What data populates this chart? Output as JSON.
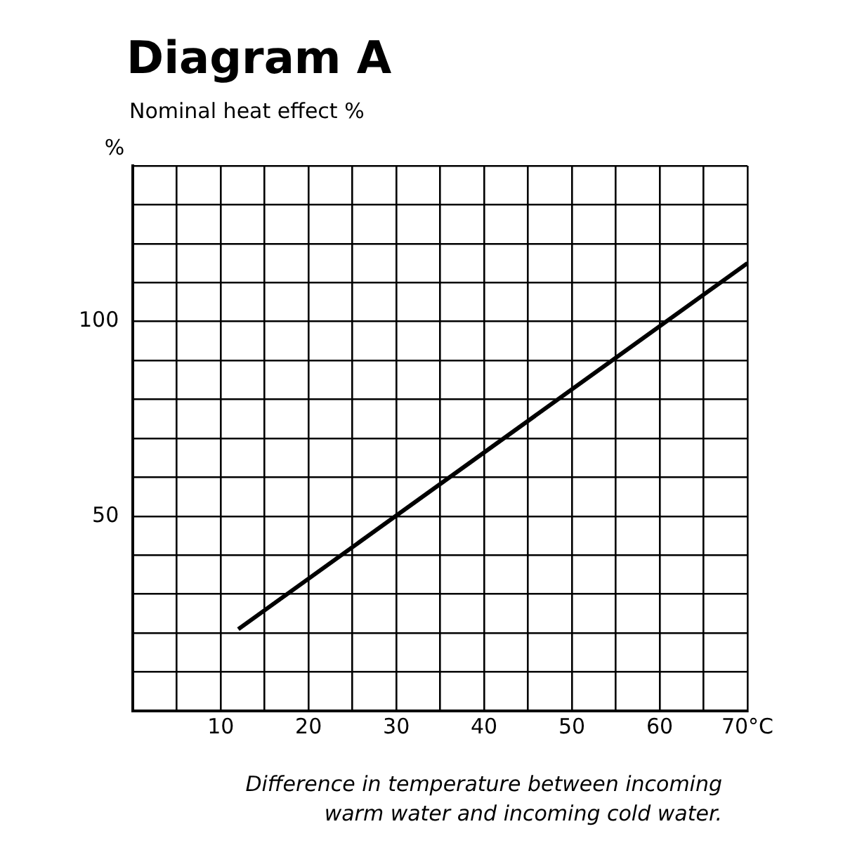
{
  "chart_data": {
    "type": "line",
    "title": "Diagram A",
    "subtitle": "Nominal heat effect %",
    "ylabel": "%",
    "xlabel": "Difference in temperature between incoming warm water and incoming cold water.",
    "x": [
      12,
      70
    ],
    "series": [
      {
        "color": "#000000",
        "values": [
          21,
          115
        ]
      }
    ],
    "xlim": [
      0,
      70
    ],
    "xticks": [
      {
        "value": 0,
        "label": null
      },
      {
        "value": 5,
        "label": null
      },
      10,
      {
        "value": 15,
        "label": null
      },
      20,
      {
        "value": 25,
        "label": null
      },
      30,
      {
        "value": 35,
        "label": null
      },
      40,
      {
        "value": 45,
        "label": null
      },
      50,
      {
        "value": 55,
        "label": null
      },
      60,
      {
        "value": 65,
        "label": null
      },
      {
        "value": 70,
        "label": "70°C"
      }
    ],
    "ylim": [
      0,
      140
    ],
    "yticks": [
      {
        "value": 0,
        "label": null
      },
      {
        "value": 10,
        "label": null
      },
      {
        "value": 20,
        "label": null
      },
      {
        "value": 30,
        "label": null
      },
      {
        "value": 40,
        "label": null
      },
      50,
      {
        "value": 60,
        "label": null
      },
      {
        "value": 70,
        "label": null
      },
      {
        "value": 80,
        "label": null
      },
      {
        "value": 90,
        "label": null
      },
      100,
      {
        "value": 110,
        "label": null
      },
      {
        "value": 120,
        "label": null
      },
      {
        "value": 130,
        "label": null
      },
      {
        "value": 140,
        "label": null
      }
    ],
    "grid": true,
    "legend": false,
    "marker": "none",
    "line_style": "solid"
  }
}
